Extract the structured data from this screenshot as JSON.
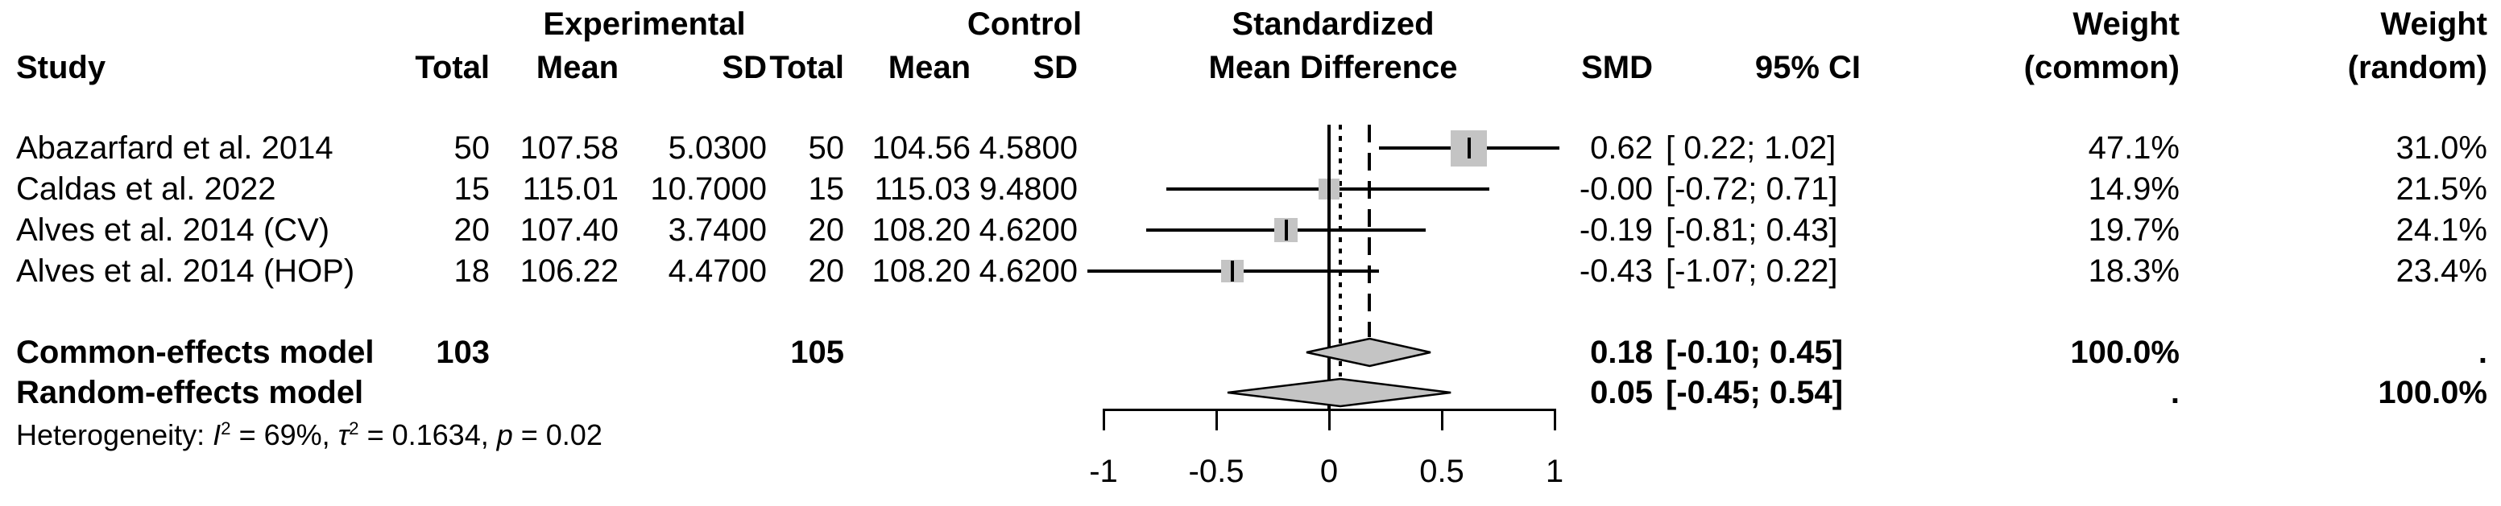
{
  "headers": {
    "study": "Study",
    "experimental": "Experimental",
    "control": "Control",
    "exp_total": "Total",
    "exp_mean": "Mean",
    "exp_sd": "SD",
    "ctrl_total": "Total",
    "ctrl_mean": "Mean",
    "ctrl_sd": "SD",
    "smd_plot_line1": "Standardized",
    "smd_plot_line2": "Mean Difference",
    "smd": "SMD",
    "ci": "95% CI",
    "weight_common_line1": "Weight",
    "weight_common_line2": "(common)",
    "weight_random_line1": "Weight",
    "weight_random_line2": "(random)"
  },
  "colors": {
    "background": "#ffffff",
    "text": "#000000",
    "marker_fill": "#c4c4c4",
    "marker_stroke": "#000000"
  },
  "chart_data": {
    "type": "forest",
    "x_axis": {
      "range": [
        -1,
        1
      ],
      "ticks": [
        -1,
        -0.5,
        0,
        0.5,
        1
      ],
      "tick_labels": [
        "-1",
        "-0.5",
        "0",
        "0.5",
        "1"
      ]
    },
    "reference_lines": {
      "zero_solid": 0,
      "common_dashed": 0.18,
      "random_dotted": 0.05
    },
    "studies": [
      {
        "label": "Abazarfard et al. 2014",
        "exp_total": "50",
        "exp_mean": "107.58",
        "exp_sd": "5.0300",
        "ctrl_total": "50",
        "ctrl_mean": "104.56",
        "ctrl_sd": "4.5800",
        "smd": 0.62,
        "ci_low": 0.22,
        "ci_high": 1.02,
        "smd_text": "0.62",
        "ci_text": "[ 0.22; 1.02]",
        "weight_common": 47.1,
        "weight_common_text": "47.1%",
        "weight_random": 31.0,
        "weight_random_text": "31.0%"
      },
      {
        "label": "Caldas et al. 2022",
        "exp_total": "15",
        "exp_mean": "115.01",
        "exp_sd": "10.7000",
        "ctrl_total": "15",
        "ctrl_mean": "115.03",
        "ctrl_sd": "9.4800",
        "smd": 0.0,
        "ci_low": -0.72,
        "ci_high": 0.71,
        "smd_text": "-0.00",
        "ci_text": "[-0.72; 0.71]",
        "weight_common": 14.9,
        "weight_common_text": "14.9%",
        "weight_random": 21.5,
        "weight_random_text": "21.5%"
      },
      {
        "label": "Alves et al. 2014 (CV)",
        "exp_total": "20",
        "exp_mean": "107.40",
        "exp_sd": "3.7400",
        "ctrl_total": "20",
        "ctrl_mean": "108.20",
        "ctrl_sd": "4.6200",
        "smd": -0.19,
        "ci_low": -0.81,
        "ci_high": 0.43,
        "smd_text": "-0.19",
        "ci_text": "[-0.81; 0.43]",
        "weight_common": 19.7,
        "weight_common_text": "19.7%",
        "weight_random": 24.1,
        "weight_random_text": "24.1%"
      },
      {
        "label": "Alves et al. 2014 (HOP)",
        "exp_total": "18",
        "exp_mean": "106.22",
        "exp_sd": "4.4700",
        "ctrl_total": "20",
        "ctrl_mean": "108.20",
        "ctrl_sd": "4.6200",
        "smd": -0.43,
        "ci_low": -1.07,
        "ci_high": 0.22,
        "smd_text": "-0.43",
        "ci_text": "[-1.07; 0.22]",
        "weight_common": 18.3,
        "weight_common_text": "18.3%",
        "weight_random": 23.4,
        "weight_random_text": "23.4%"
      }
    ],
    "models": [
      {
        "label": "Common-effects model",
        "exp_total": "103",
        "ctrl_total": "105",
        "smd": 0.18,
        "ci_low": -0.1,
        "ci_high": 0.45,
        "smd_text": "0.18",
        "ci_text": "[-0.10; 0.45]",
        "weight_common_text": "100.0%",
        "weight_random_text": "."
      },
      {
        "label": "Random-effects model",
        "exp_total": "",
        "ctrl_total": "",
        "smd": 0.05,
        "ci_low": -0.45,
        "ci_high": 0.54,
        "smd_text": "0.05",
        "ci_text": "[-0.45; 0.54]",
        "weight_common_text": ".",
        "weight_random_text": "100.0%"
      }
    ],
    "heterogeneity": {
      "prefix": "Heterogeneity: ",
      "i2": "I",
      "i2_sup": "2",
      "seg1": " = 69%, ",
      "tau": "τ",
      "tau_sup": "2",
      "seg2": " = 0.1634, ",
      "p": "p",
      "seg3": " = 0.02"
    }
  }
}
